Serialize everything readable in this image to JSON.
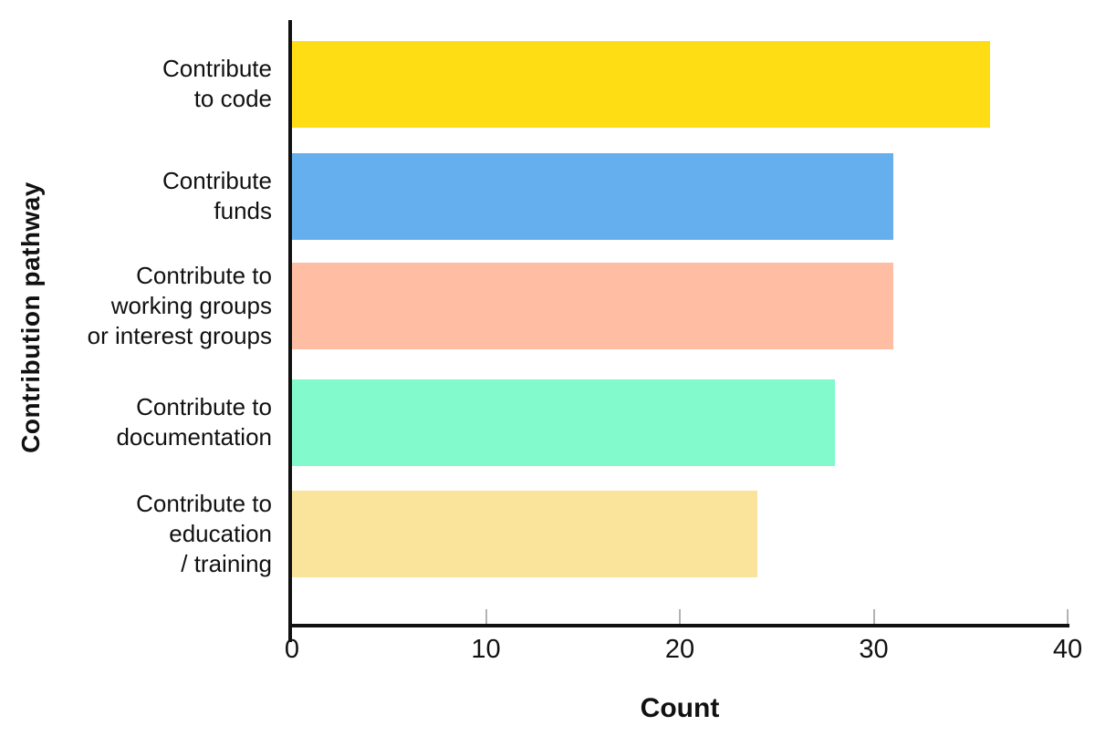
{
  "chart_data": {
    "type": "bar",
    "orientation": "horizontal",
    "title": "",
    "xlabel": "Count",
    "ylabel": "Contribution pathway",
    "categories": [
      "Contribute to code",
      "Contribute funds",
      "Contribute to working groups or interest groups",
      "Contribute to documentation",
      "Contribute to education / training"
    ],
    "category_label_lines": [
      [
        "Contribute",
        "to code"
      ],
      [
        "Contribute",
        "funds"
      ],
      [
        "Contribute to",
        "working groups",
        "or interest groups"
      ],
      [
        "Contribute to",
        "documentation"
      ],
      [
        "Contribute to",
        "education",
        "/ training"
      ]
    ],
    "values": [
      36,
      31,
      31,
      28,
      24
    ],
    "bar_colors": [
      "#FFDD15",
      "#66AFEE",
      "#FFBEA3",
      "#83FACC",
      "#FAE49C"
    ],
    "x_ticks": [
      0,
      10,
      20,
      30,
      40
    ],
    "xlim": [
      0,
      40
    ],
    "grid": false,
    "legend": "none",
    "axis_color": "#111111",
    "tick_mark_color": "#b3b3b3",
    "text_color": "#111111",
    "background": "#ffffff"
  }
}
